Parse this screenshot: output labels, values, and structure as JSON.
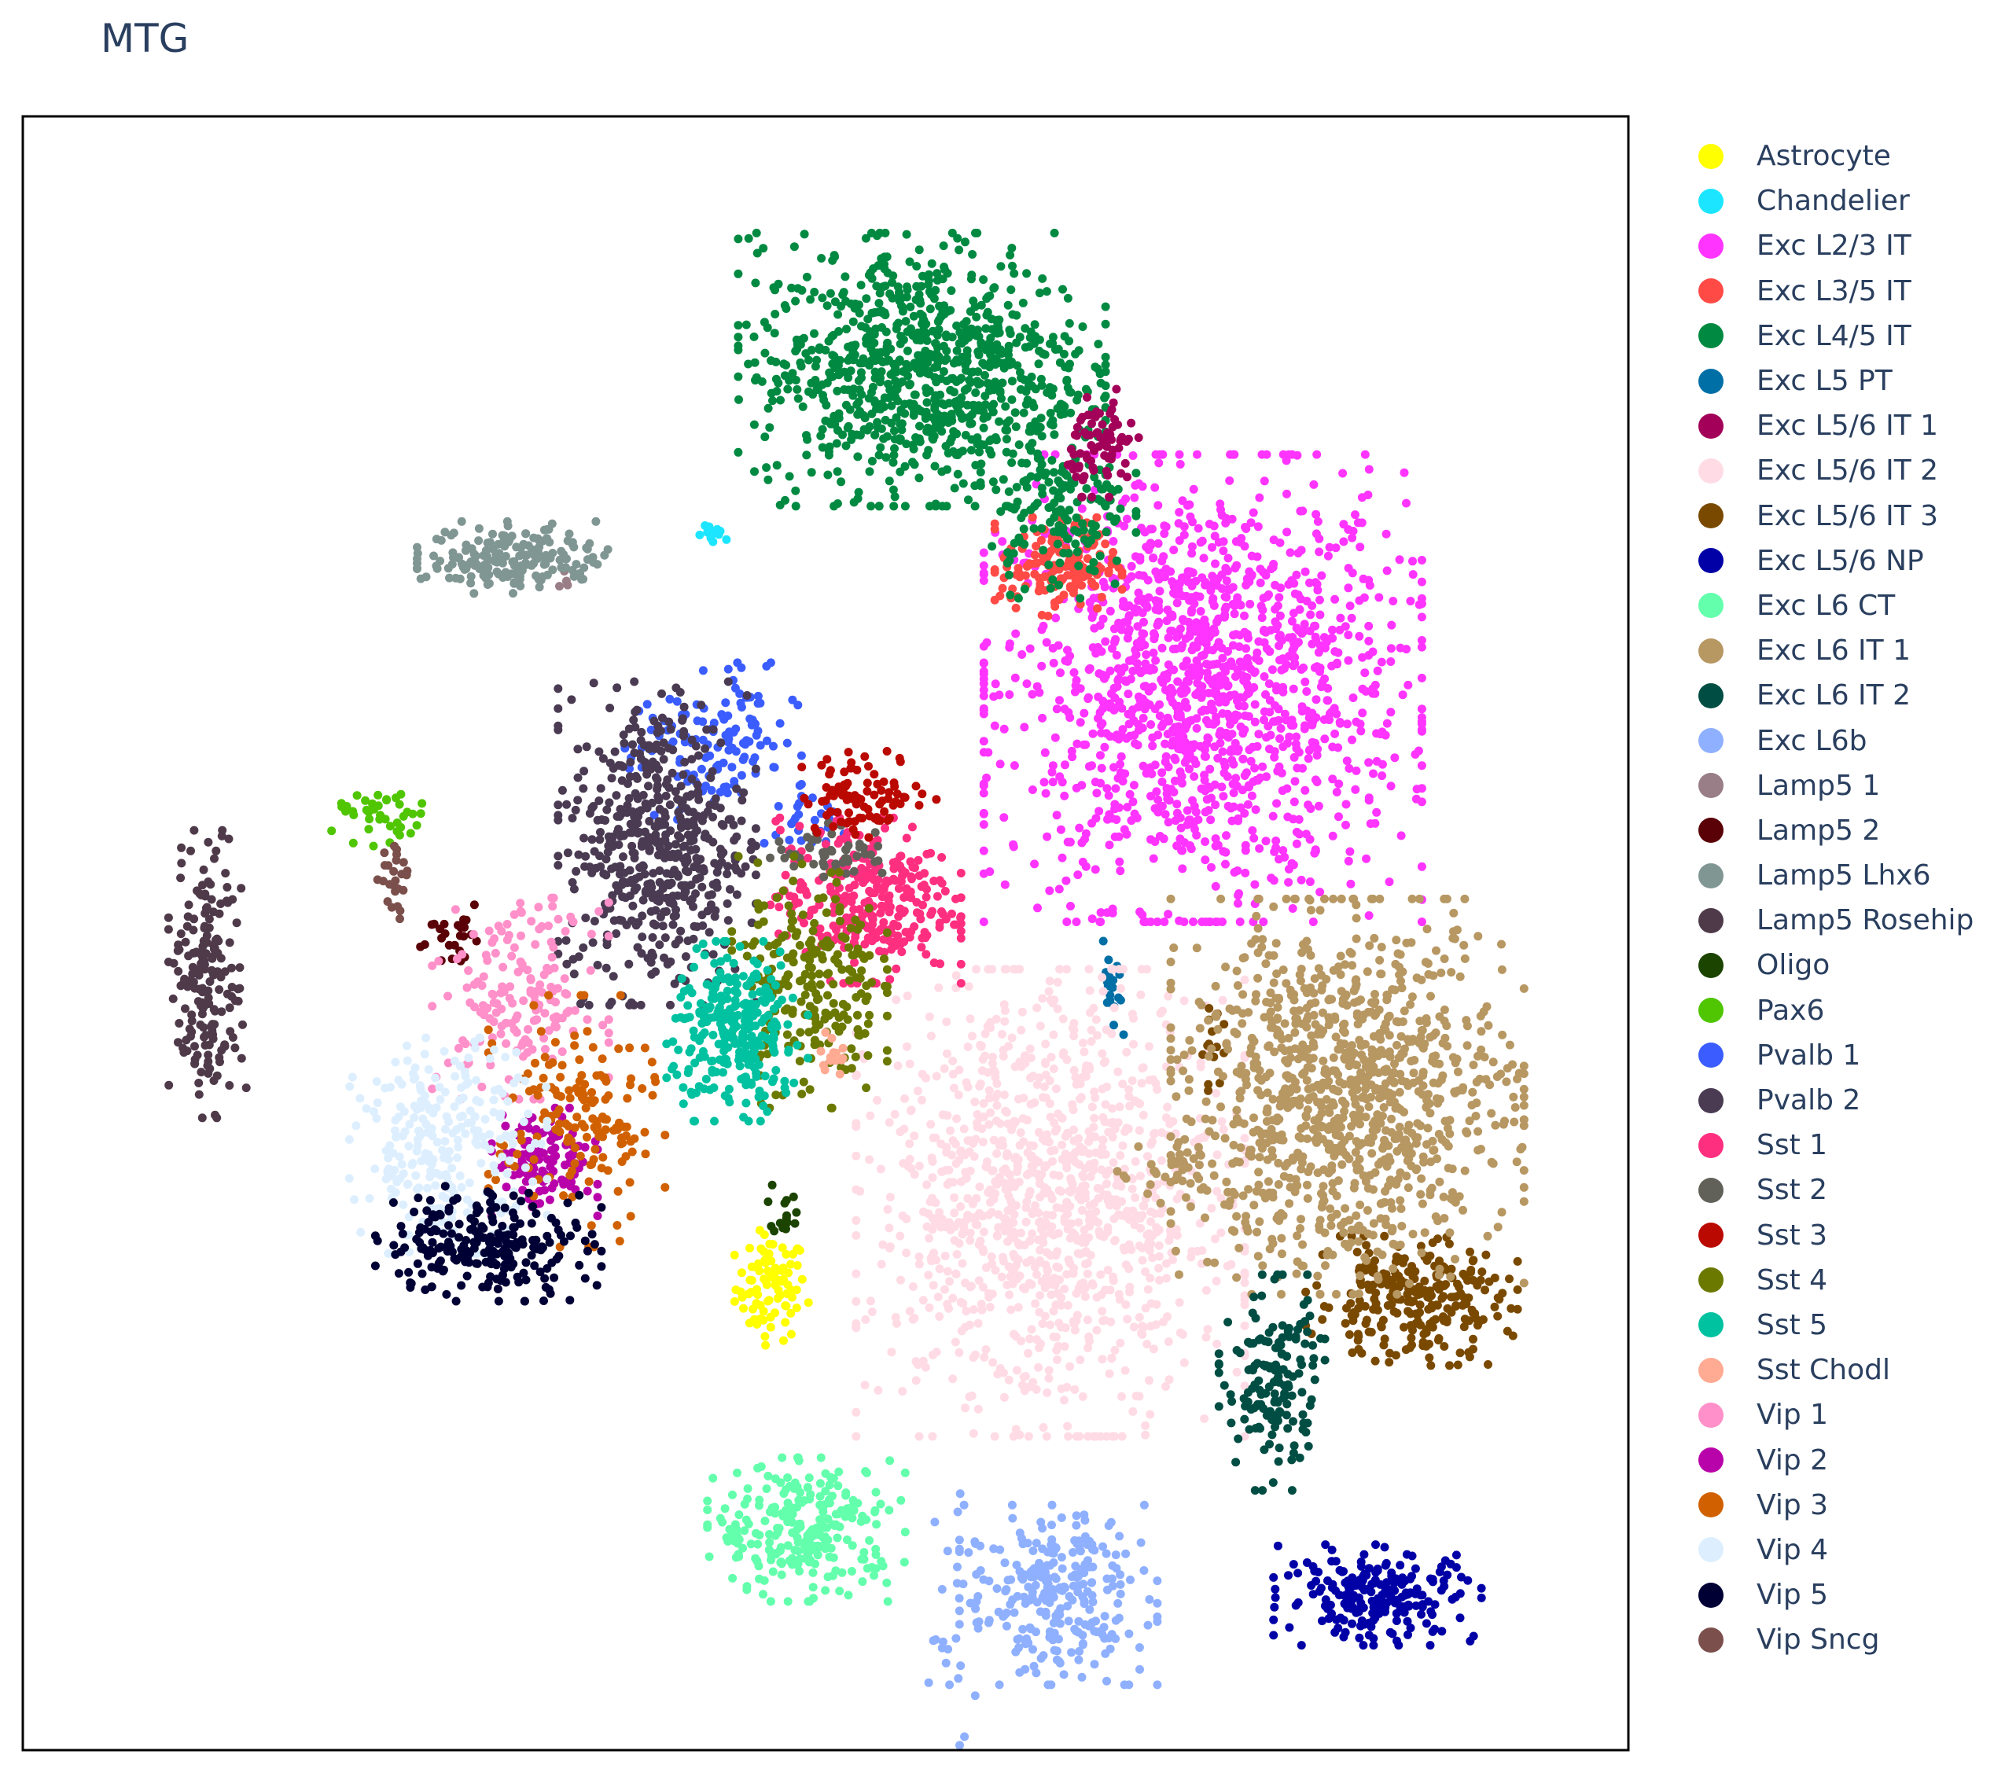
{
  "chart_data": {
    "type": "scatter",
    "title": "MTG",
    "xlabel": "",
    "ylabel": "",
    "grid": false,
    "legend_position": "right",
    "x_range": [
      0,
      100
    ],
    "y_range": [
      0,
      100
    ],
    "series": [
      {
        "name": "Astrocyte",
        "color": "#FFFF00",
        "clusters": [
          {
            "cx": 46.6,
            "cy": 28.3,
            "sx": 1.1,
            "sy": 1.6,
            "n": 90
          }
        ]
      },
      {
        "name": "Chandelier",
        "color": "#1CE6FF",
        "clusters": [
          {
            "cx": 43.2,
            "cy": 74.3,
            "sx": 0.6,
            "sy": 0.3,
            "n": 12
          }
        ]
      },
      {
        "name": "Exc L2/3 IT",
        "color": "#FF34FF",
        "clusters": [
          {
            "cx": 73.5,
            "cy": 65.0,
            "sx": 6.2,
            "sy": 6.5,
            "n": 1400
          }
        ]
      },
      {
        "name": "Exc L3/5 IT",
        "color": "#FF4A46",
        "clusters": [
          {
            "cx": 64.5,
            "cy": 72.5,
            "sx": 1.8,
            "sy": 1.4,
            "n": 160
          }
        ]
      },
      {
        "name": "Exc L4/5 IT",
        "color": "#008941",
        "clusters": [
          {
            "cx": 56.0,
            "cy": 84.5,
            "sx": 5.2,
            "sy": 3.8,
            "n": 900
          },
          {
            "cx": 64.5,
            "cy": 76.0,
            "sx": 2.2,
            "sy": 2.5,
            "n": 150
          }
        ]
      },
      {
        "name": "Exc L5 PT",
        "color": "#006FA6",
        "clusters": [
          {
            "cx": 67.9,
            "cy": 46.0,
            "sx": 0.3,
            "sy": 1.6,
            "n": 20
          }
        ]
      },
      {
        "name": "Exc L5/6 IT 1",
        "color": "#A30059",
        "clusters": [
          {
            "cx": 67.3,
            "cy": 80.0,
            "sx": 1.0,
            "sy": 1.5,
            "n": 80
          }
        ]
      },
      {
        "name": "Exc L5/6 IT 2",
        "color": "#FFDBE5",
        "clusters": [
          {
            "cx": 64.0,
            "cy": 33.5,
            "sx": 5.5,
            "sy": 6.5,
            "n": 1100
          }
        ]
      },
      {
        "name": "Exc L5/6 IT 3",
        "color": "#7A4900",
        "clusters": [
          {
            "cx": 86.5,
            "cy": 27.5,
            "sx": 3.0,
            "sy": 1.8,
            "n": 260
          },
          {
            "cx": 74.0,
            "cy": 43.0,
            "sx": 0.4,
            "sy": 1.2,
            "n": 14
          }
        ]
      },
      {
        "name": "Exc L5/6 NP",
        "color": "#0000A6",
        "clusters": [
          {
            "cx": 84.5,
            "cy": 9.5,
            "sx": 3.0,
            "sy": 1.4,
            "n": 220
          }
        ]
      },
      {
        "name": "Exc L6 CT",
        "color": "#63FFAC",
        "clusters": [
          {
            "cx": 48.8,
            "cy": 13.5,
            "sx": 2.8,
            "sy": 2.0,
            "n": 260
          }
        ]
      },
      {
        "name": "Exc L6 IT 1",
        "color": "#B79762",
        "clusters": [
          {
            "cx": 82.5,
            "cy": 40.0,
            "sx": 5.0,
            "sy": 5.5,
            "n": 1000
          },
          {
            "cx": 73.0,
            "cy": 36.0,
            "sx": 2.5,
            "sy": 1.2,
            "n": 60
          }
        ]
      },
      {
        "name": "Exc L6 IT 2",
        "color": "#004D43",
        "clusters": [
          {
            "cx": 77.8,
            "cy": 22.5,
            "sx": 1.5,
            "sy": 3.0,
            "n": 160
          }
        ]
      },
      {
        "name": "Exc L6b",
        "color": "#8FB0FF",
        "clusters": [
          {
            "cx": 64.5,
            "cy": 9.5,
            "sx": 2.8,
            "sy": 2.5,
            "n": 260
          },
          {
            "cx": 58.0,
            "cy": 8.0,
            "sx": 1.0,
            "sy": 3.5,
            "n": 30
          }
        ]
      },
      {
        "name": "Lamp5 1",
        "color": "#997D87",
        "clusters": [
          {
            "cx": 33.8,
            "cy": 71.5,
            "sx": 0.3,
            "sy": 0.3,
            "n": 4
          }
        ]
      },
      {
        "name": "Lamp5 2",
        "color": "#5A0007",
        "clusters": [
          {
            "cx": 26.5,
            "cy": 50.0,
            "sx": 0.8,
            "sy": 0.8,
            "n": 25
          }
        ]
      },
      {
        "name": "Lamp5 Lhx6",
        "color": "#809693",
        "clusters": [
          {
            "cx": 30.5,
            "cy": 73.0,
            "sx": 2.7,
            "sy": 1.0,
            "n": 180
          }
        ]
      },
      {
        "name": "Lamp5 Rosehip",
        "color": "#4F3A4A",
        "clusters": [
          {
            "cx": 11.5,
            "cy": 47.5,
            "sx": 1.1,
            "sy": 4.0,
            "n": 190
          }
        ]
      },
      {
        "name": "Oligo",
        "color": "#1B4400",
        "clusters": [
          {
            "cx": 47.5,
            "cy": 33.0,
            "sx": 0.5,
            "sy": 1.0,
            "n": 15
          }
        ]
      },
      {
        "name": "Pax6",
        "color": "#4FC601",
        "clusters": [
          {
            "cx": 22.5,
            "cy": 57.0,
            "sx": 1.5,
            "sy": 0.8,
            "n": 40
          }
        ]
      },
      {
        "name": "Pvalb 1",
        "color": "#3B5DFF",
        "clusters": [
          {
            "cx": 43.0,
            "cy": 61.5,
            "sx": 2.5,
            "sy": 2.3,
            "n": 130
          },
          {
            "cx": 48.5,
            "cy": 56.5,
            "sx": 1.2,
            "sy": 1.0,
            "n": 25
          }
        ]
      },
      {
        "name": "Pvalb 2",
        "color": "#4A3B53",
        "clusters": [
          {
            "cx": 39.5,
            "cy": 55.5,
            "sx": 2.8,
            "sy": 4.5,
            "n": 520
          }
        ]
      },
      {
        "name": "Sst 1",
        "color": "#FF2F80",
        "clusters": [
          {
            "cx": 52.5,
            "cy": 52.0,
            "sx": 2.7,
            "sy": 2.3,
            "n": 300
          }
        ]
      },
      {
        "name": "Sst 2",
        "color": "#61615A",
        "clusters": [
          {
            "cx": 50.5,
            "cy": 55.0,
            "sx": 1.8,
            "sy": 0.8,
            "n": 50
          }
        ]
      },
      {
        "name": "Sst 3",
        "color": "#BA0900",
        "clusters": [
          {
            "cx": 52.5,
            "cy": 58.5,
            "sx": 2.0,
            "sy": 1.2,
            "n": 90
          }
        ]
      },
      {
        "name": "Sst 4",
        "color": "#6B7900",
        "clusters": [
          {
            "cx": 49.0,
            "cy": 47.0,
            "sx": 2.2,
            "sy": 3.5,
            "n": 230
          }
        ]
      },
      {
        "name": "Sst 5",
        "color": "#00C2A0",
        "clusters": [
          {
            "cx": 44.5,
            "cy": 44.0,
            "sx": 2.0,
            "sy": 2.5,
            "n": 280
          }
        ]
      },
      {
        "name": "Sst Chodl",
        "color": "#FFAA92",
        "clusters": [
          {
            "cx": 50.2,
            "cy": 42.6,
            "sx": 0.4,
            "sy": 0.6,
            "n": 15
          }
        ]
      },
      {
        "name": "Vip 1",
        "color": "#FF90C9",
        "clusters": [
          {
            "cx": 31.0,
            "cy": 46.0,
            "sx": 2.5,
            "sy": 2.8,
            "n": 170
          }
        ]
      },
      {
        "name": "Vip 2",
        "color": "#B903AA",
        "clusters": [
          {
            "cx": 32.5,
            "cy": 36.0,
            "sx": 1.5,
            "sy": 1.5,
            "n": 120
          }
        ]
      },
      {
        "name": "Vip 3",
        "color": "#D16100",
        "clusters": [
          {
            "cx": 34.5,
            "cy": 38.5,
            "sx": 2.5,
            "sy": 3.5,
            "n": 160
          }
        ]
      },
      {
        "name": "Vip 4",
        "color": "#DDEFFF",
        "clusters": [
          {
            "cx": 26.5,
            "cy": 37.0,
            "sx": 2.8,
            "sy": 3.0,
            "n": 260
          }
        ]
      },
      {
        "name": "Vip 5",
        "color": "#000035",
        "clusters": [
          {
            "cx": 29.0,
            "cy": 31.0,
            "sx": 3.2,
            "sy": 1.6,
            "n": 230
          }
        ]
      },
      {
        "name": "Vip Sncg",
        "color": "#7B4F4B",
        "clusters": [
          {
            "cx": 23.0,
            "cy": 53.5,
            "sx": 0.5,
            "sy": 1.2,
            "n": 25
          }
        ]
      }
    ]
  }
}
